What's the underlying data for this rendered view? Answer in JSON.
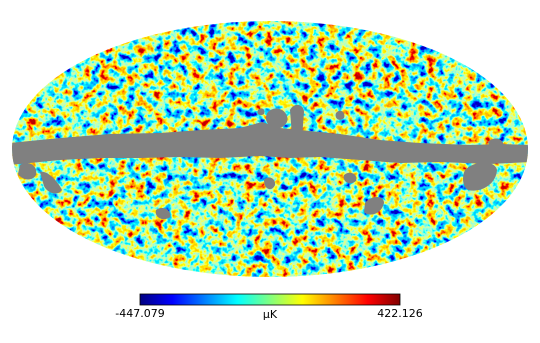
{
  "chart_data": {
    "type": "heatmap",
    "projection": "mollweide",
    "mask_color": "#808080",
    "colorbar": {
      "colormap": "jet",
      "vmin": -447.079,
      "vmax": 422.126,
      "label": "μK"
    }
  }
}
